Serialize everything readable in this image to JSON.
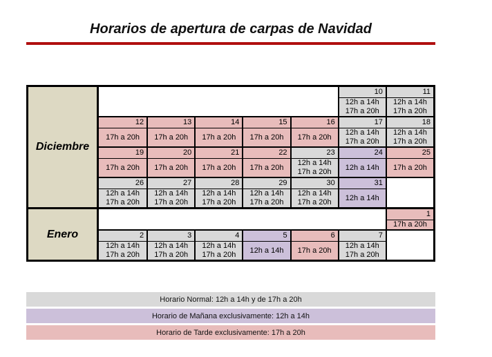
{
  "title": "Horarios de apertura de carpas de Navidad",
  "colors": {
    "normal": "#D9D9D9",
    "manana": "#CCC0DA",
    "tarde": "#E8BCBB",
    "month": "#DDD9C3",
    "rule": "#B00F0F"
  },
  "months": [
    {
      "name": "Diciembre",
      "weeks": [
        {
          "cells": [
            {
              "type": "blank",
              "span": 5
            },
            {
              "type": "day",
              "day": "10",
              "variant": "normal",
              "hours": [
                "12h a 14h",
                "17h a 20h"
              ]
            },
            {
              "type": "day",
              "day": "11",
              "variant": "normal",
              "hours": [
                "12h a 14h",
                "17h a 20h"
              ]
            }
          ]
        },
        {
          "cells": [
            {
              "type": "day",
              "day": "12",
              "variant": "tarde",
              "hours": [
                "17h a 20h"
              ]
            },
            {
              "type": "day",
              "day": "13",
              "variant": "tarde",
              "hours": [
                "17h a 20h"
              ]
            },
            {
              "type": "day",
              "day": "14",
              "variant": "tarde",
              "hours": [
                "17h a 20h"
              ]
            },
            {
              "type": "day",
              "day": "15",
              "variant": "tarde",
              "hours": [
                "17h a 20h"
              ]
            },
            {
              "type": "day",
              "day": "16",
              "variant": "tarde",
              "hours": [
                "17h a 20h"
              ]
            },
            {
              "type": "day",
              "day": "17",
              "variant": "normal",
              "hours": [
                "12h a 14h",
                "17h a 20h"
              ]
            },
            {
              "type": "day",
              "day": "18",
              "variant": "normal",
              "hours": [
                "12h a 14h",
                "17h a 20h"
              ]
            }
          ]
        },
        {
          "cells": [
            {
              "type": "day",
              "day": "19",
              "variant": "tarde",
              "hours": [
                "17h a 20h"
              ]
            },
            {
              "type": "day",
              "day": "20",
              "variant": "tarde",
              "hours": [
                "17h a 20h"
              ]
            },
            {
              "type": "day",
              "day": "21",
              "variant": "tarde",
              "hours": [
                "17h a 20h"
              ]
            },
            {
              "type": "day",
              "day": "22",
              "variant": "tarde",
              "hours": [
                "17h a 20h"
              ]
            },
            {
              "type": "day",
              "day": "23",
              "variant": "normal",
              "hours": [
                "12h a 14h",
                "17h a 20h"
              ]
            },
            {
              "type": "day",
              "day": "24",
              "variant": "manana",
              "hours": [
                "12h a 14h"
              ]
            },
            {
              "type": "day",
              "day": "25",
              "variant": "tarde",
              "hours": [
                "17h a 20h"
              ]
            }
          ]
        },
        {
          "cells": [
            {
              "type": "day",
              "day": "26",
              "variant": "normal",
              "hours": [
                "12h a 14h",
                "17h a 20h"
              ]
            },
            {
              "type": "day",
              "day": "27",
              "variant": "normal",
              "hours": [
                "12h a 14h",
                "17h a 20h"
              ]
            },
            {
              "type": "day",
              "day": "28",
              "variant": "normal",
              "hours": [
                "12h a 14h",
                "17h a 20h"
              ]
            },
            {
              "type": "day",
              "day": "29",
              "variant": "normal",
              "hours": [
                "12h a 14h",
                "17h a 20h"
              ]
            },
            {
              "type": "day",
              "day": "30",
              "variant": "normal",
              "hours": [
                "12h a 14h",
                "17h a 20h"
              ]
            },
            {
              "type": "day",
              "day": "31",
              "variant": "manana",
              "hours": [
                "12h a 14h"
              ]
            },
            {
              "type": "blank",
              "span": 1
            }
          ]
        }
      ]
    },
    {
      "name": "Enero",
      "weeks": [
        {
          "cells": [
            {
              "type": "blank",
              "span": 6
            },
            {
              "type": "day",
              "day": "1",
              "variant": "tarde",
              "hours": [
                "17h a 20h"
              ]
            }
          ]
        },
        {
          "cells": [
            {
              "type": "day",
              "day": "2",
              "variant": "normal",
              "hours": [
                "12h a 14h",
                "17h a 20h"
              ]
            },
            {
              "type": "day",
              "day": "3",
              "variant": "normal",
              "hours": [
                "12h a 14h",
                "17h a 20h"
              ]
            },
            {
              "type": "day",
              "day": "4",
              "variant": "normal",
              "hours": [
                "12h a 14h",
                "17h a 20h"
              ]
            },
            {
              "type": "day",
              "day": "5",
              "variant": "manana",
              "hours": [
                "12h a 14h"
              ]
            },
            {
              "type": "day",
              "day": "6",
              "variant": "tarde",
              "hours": [
                "17h a 20h"
              ]
            },
            {
              "type": "day",
              "day": "7",
              "variant": "normal",
              "hours": [
                "12h a 14h",
                "17h a 20h"
              ]
            },
            {
              "type": "blank",
              "span": 1
            }
          ]
        }
      ]
    }
  ],
  "legend": [
    {
      "variant": "normal",
      "label": "Horario Normal: 12h a 14h y de 17h a 20h"
    },
    {
      "variant": "manana",
      "label": "Horario de Mañana exclusivamente: 12h a 14h"
    },
    {
      "variant": "tarde",
      "label": "Horario de Tarde exclusivamente: 17h a 20h"
    }
  ]
}
